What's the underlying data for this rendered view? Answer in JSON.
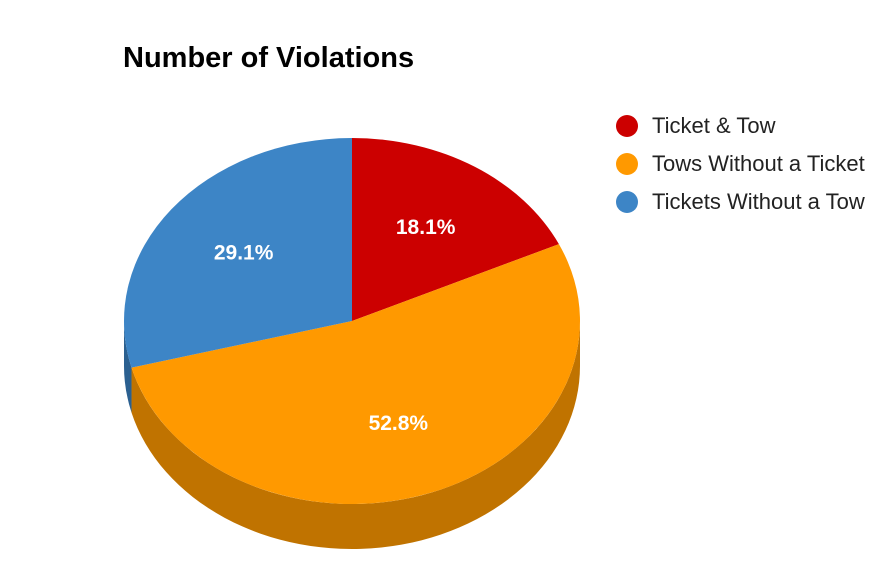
{
  "chart_data": {
    "type": "pie",
    "title": "Number of Violations",
    "three_d": true,
    "legend_position": "right",
    "slices": [
      {
        "label": "Ticket & Tow",
        "value": 18.1,
        "display": "18.1%",
        "color": "#cc0000",
        "side_color": "#8b0000"
      },
      {
        "label": "Tows Without a Ticket",
        "value": 52.8,
        "display": "52.8%",
        "color": "#ff9900",
        "side_color": "#c07300"
      },
      {
        "label": "Tickets Without a Tow",
        "value": 29.1,
        "display": "29.1%",
        "color": "#3d85c6",
        "side_color": "#2b6090"
      }
    ]
  }
}
